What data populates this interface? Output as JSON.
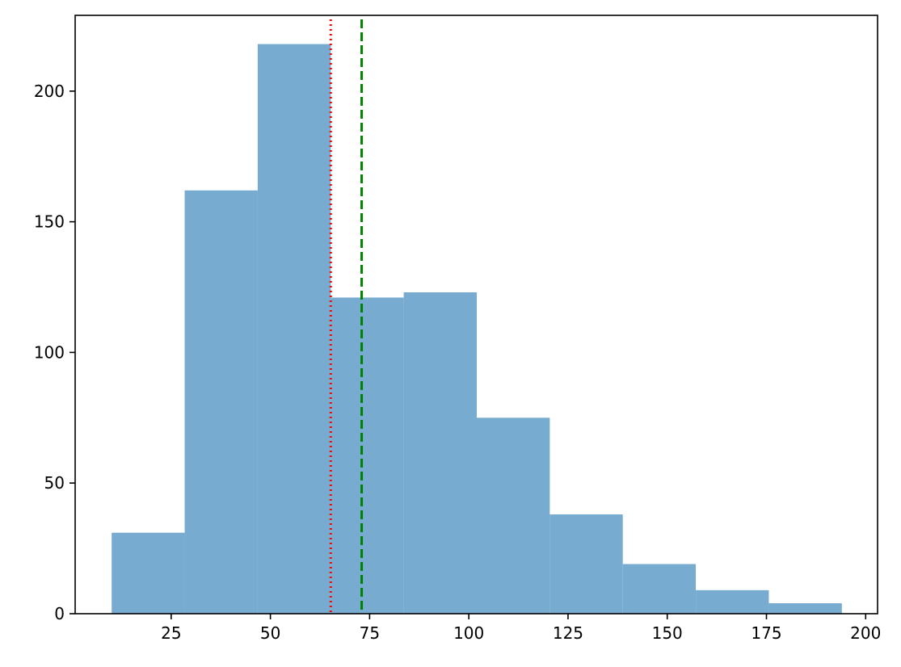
{
  "chart_data": {
    "type": "bar",
    "title": "",
    "xlabel": "",
    "ylabel": "",
    "xlim": [
      0.8,
      203
    ],
    "ylim": [
      0,
      229
    ],
    "grid": false,
    "bars": [
      {
        "x0": 10.0,
        "x1": 28.4,
        "value": 31
      },
      {
        "x0": 28.4,
        "x1": 46.8,
        "value": 162
      },
      {
        "x0": 46.8,
        "x1": 65.2,
        "value": 218
      },
      {
        "x0": 65.2,
        "x1": 83.6,
        "value": 121
      },
      {
        "x0": 83.6,
        "x1": 102.0,
        "value": 123
      },
      {
        "x0": 102.0,
        "x1": 120.4,
        "value": 75
      },
      {
        "x0": 120.4,
        "x1": 138.8,
        "value": 38
      },
      {
        "x0": 138.8,
        "x1": 157.2,
        "value": 19
      },
      {
        "x0": 157.2,
        "x1": 175.6,
        "value": 9
      },
      {
        "x0": 175.6,
        "x1": 194.0,
        "value": 4
      }
    ],
    "x_ticks": [
      {
        "value": 25,
        "label": "25"
      },
      {
        "value": 50,
        "label": "50"
      },
      {
        "value": 75,
        "label": "75"
      },
      {
        "value": 100,
        "label": "100"
      },
      {
        "value": 125,
        "label": "125"
      },
      {
        "value": 150,
        "label": "150"
      },
      {
        "value": 175,
        "label": "175"
      },
      {
        "value": 200,
        "label": "200"
      }
    ],
    "y_ticks": [
      {
        "value": 0,
        "label": "0"
      },
      {
        "value": 50,
        "label": "50"
      },
      {
        "value": 100,
        "label": "100"
      },
      {
        "value": 150,
        "label": "150"
      },
      {
        "value": 200,
        "label": "200"
      }
    ],
    "reference_lines": [
      {
        "x": 65.2,
        "color": "#ff0000",
        "style": "dotted"
      },
      {
        "x": 73.0,
        "color": "#008000",
        "style": "dashed"
      }
    ],
    "colors": {
      "bars": "#77acd0",
      "axes": "#000000"
    }
  }
}
